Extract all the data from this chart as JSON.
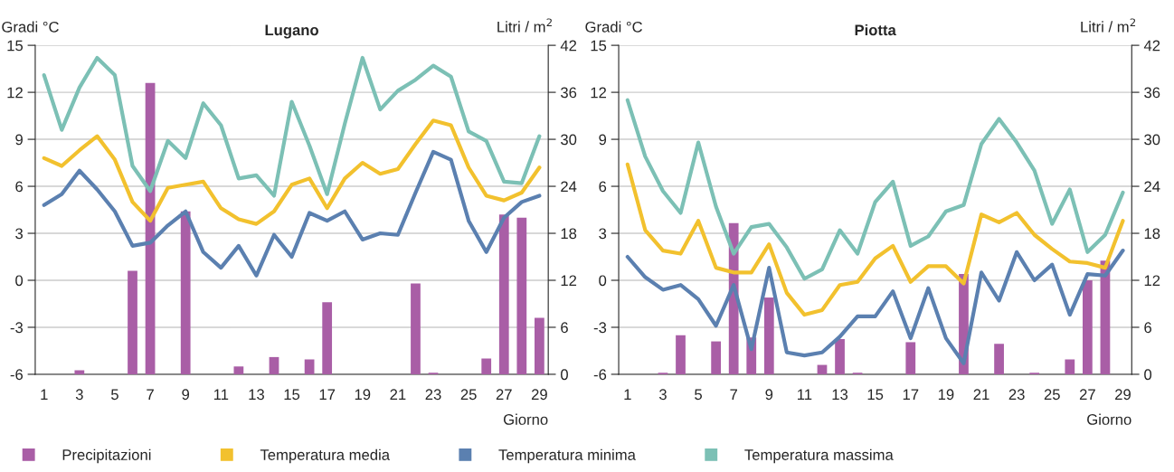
{
  "chart_data": [
    {
      "type": "line",
      "title": "Lugano",
      "ylabel": "Gradi °C",
      "y2label": "Litri / m$^{2}$",
      "xlabel": "Giorno",
      "categories": [
        "1",
        null,
        "3",
        null,
        "5",
        null,
        "7",
        null,
        "9",
        null,
        "11",
        null,
        "13",
        null,
        "15",
        null,
        "17",
        null,
        "19",
        null,
        "21",
        null,
        "23",
        null,
        "25",
        null,
        "27",
        null,
        "29"
      ],
      "ylim": [
        -6,
        15
      ],
      "yticks": [
        -6,
        -3,
        0,
        3,
        6,
        9,
        12,
        15
      ],
      "y2lim": [
        0,
        42
      ],
      "y2ticks": [
        0,
        6,
        12,
        18,
        24,
        30,
        36,
        42
      ],
      "grid": "y",
      "legend": "bottom",
      "series": [
        {
          "name": "Precipitazioni",
          "type": "bar",
          "axis": "y2",
          "color": "#a95ea6",
          "values": [
            0,
            0,
            0.5,
            0,
            0,
            13.2,
            37.2,
            0,
            20.8,
            0,
            0,
            1.0,
            0,
            2.2,
            0,
            1.9,
            9.2,
            0,
            0,
            0,
            0,
            11.6,
            0.2,
            0,
            0,
            2.0,
            20.4,
            20.0,
            7.2
          ]
        },
        {
          "name": "Temperatura media",
          "color": "#f2c12e",
          "values": [
            7.8,
            7.3,
            8.3,
            9.2,
            7.7,
            5.0,
            3.8,
            5.9,
            6.1,
            6.3,
            4.6,
            3.9,
            3.6,
            4.4,
            6.1,
            6.5,
            4.6,
            6.5,
            7.5,
            6.8,
            7.1,
            8.7,
            10.2,
            9.9,
            7.2,
            5.4,
            5.1,
            5.6,
            7.2
          ]
        },
        {
          "name": "Temperatura minima",
          "color": "#5b80b0",
          "values": [
            4.8,
            5.5,
            7.0,
            5.8,
            4.4,
            2.2,
            2.4,
            3.5,
            4.4,
            1.8,
            0.8,
            2.2,
            0.3,
            2.9,
            1.5,
            4.3,
            3.8,
            4.4,
            2.6,
            3.0,
            2.9,
            5.6,
            8.2,
            7.7,
            3.8,
            1.8,
            4.0,
            5.0,
            5.4
          ]
        },
        {
          "name": "Temperatura massima",
          "color": "#7cc0b5",
          "values": [
            13.1,
            9.6,
            12.3,
            14.2,
            13.1,
            7.3,
            5.7,
            8.9,
            7.8,
            11.3,
            9.9,
            6.5,
            6.7,
            5.4,
            11.4,
            8.6,
            5.5,
            10.0,
            14.2,
            10.9,
            12.1,
            12.8,
            13.7,
            13.0,
            9.5,
            8.9,
            6.3,
            6.2,
            9.2
          ]
        }
      ]
    },
    {
      "type": "line",
      "title": "Piotta",
      "ylabel": "Gradi °C",
      "y2label": "Litri / m$^{2}$",
      "xlabel": "Giorno",
      "categories": [
        "1",
        null,
        "3",
        null,
        "5",
        null,
        "7",
        null,
        "9",
        null,
        "11",
        null,
        "13",
        null,
        "15",
        null,
        "17",
        null,
        "19",
        null,
        "21",
        null,
        "23",
        null,
        "25",
        null,
        "27",
        null,
        "29"
      ],
      "ylim": [
        -6,
        15
      ],
      "yticks": [
        -6,
        -3,
        0,
        3,
        6,
        9,
        12,
        15
      ],
      "y2lim": [
        0,
        42
      ],
      "y2ticks": [
        0,
        6,
        12,
        18,
        24,
        30,
        36,
        42
      ],
      "grid": "y",
      "legend": "bottom",
      "series": [
        {
          "name": "Precipitazioni",
          "type": "bar",
          "axis": "y2",
          "color": "#a95ea6",
          "values": [
            0,
            0,
            0.2,
            5.0,
            0,
            4.2,
            19.3,
            4.7,
            9.8,
            0,
            0,
            1.2,
            4.5,
            0.2,
            0,
            0,
            4.1,
            0,
            0,
            12.8,
            0,
            3.9,
            0,
            0.2,
            0,
            1.9,
            12.0,
            14.5,
            0
          ]
        },
        {
          "name": "Temperatura media",
          "color": "#f2c12e",
          "values": [
            7.4,
            3.2,
            1.9,
            1.7,
            3.8,
            0.8,
            0.5,
            0.5,
            2.3,
            -0.8,
            -2.2,
            -1.9,
            -0.3,
            -0.1,
            1.4,
            2.2,
            -0.1,
            0.9,
            0.9,
            -0.2,
            4.2,
            3.7,
            4.3,
            2.9,
            2.0,
            1.2,
            1.1,
            0.8,
            3.8
          ]
        },
        {
          "name": "Temperatura minima",
          "color": "#5b80b0",
          "values": [
            1.5,
            0.2,
            -0.6,
            -0.3,
            -1.2,
            -2.9,
            -0.3,
            -4.4,
            0.8,
            -4.6,
            -4.8,
            -4.6,
            -3.6,
            -2.3,
            -2.3,
            -0.7,
            -3.7,
            -0.5,
            -3.7,
            -5.3,
            0.5,
            -1.3,
            1.8,
            0.0,
            1.0,
            -2.2,
            0.4,
            0.3,
            1.9
          ]
        },
        {
          "name": "Temperatura massima",
          "color": "#7cc0b5",
          "values": [
            11.5,
            7.9,
            5.7,
            4.3,
            8.8,
            4.7,
            1.7,
            3.4,
            3.6,
            2.1,
            0.1,
            0.7,
            3.2,
            1.7,
            5.0,
            6.3,
            2.2,
            2.8,
            4.4,
            4.8,
            8.7,
            10.3,
            8.8,
            7.0,
            3.6,
            5.8,
            1.8,
            2.9,
            5.6
          ]
        }
      ]
    }
  ]
}
